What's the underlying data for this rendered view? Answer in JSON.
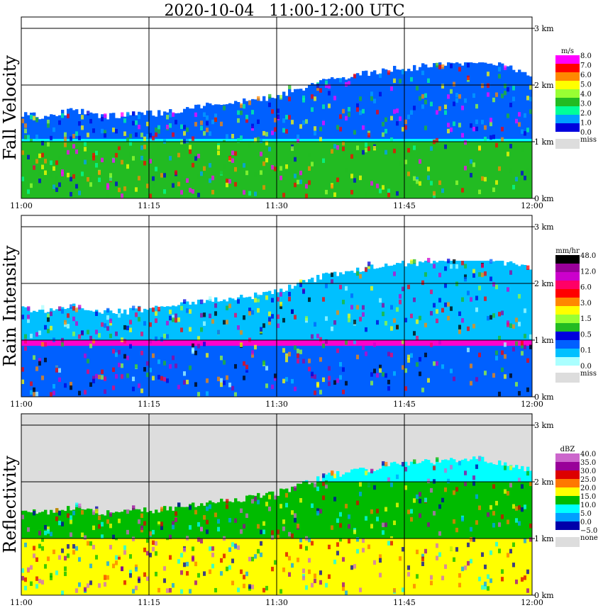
{
  "chart_data": {
    "type": "heatmap",
    "title": "2020-10-04   11:00-12:00 UTC",
    "x_tick_labels": [
      "11:00",
      "11:15",
      "11:30",
      "11:45",
      "12:00"
    ],
    "x_range_minutes": [
      0,
      60
    ],
    "y_tick_labels": [
      "0 km",
      "1 km",
      "2 km",
      "3 km"
    ],
    "y_range_km": [
      0,
      3.2
    ],
    "grid": true,
    "panels": [
      {
        "name": "fall-velocity",
        "label": "Fall Velocity",
        "unit": "m/s",
        "legend_labels": [
          "8.0",
          "7.0",
          "6.0",
          "5.0",
          "4.0",
          "3.0",
          "2.0",
          "1.0",
          "0.0"
        ],
        "legend_colors": [
          "#ff00ff",
          "#ff0000",
          "#ff8800",
          "#ffff00",
          "#99ff33",
          "#22bb22",
          "#00ff99",
          "#00a0ff",
          "#0000dd"
        ],
        "miss_label": "miss",
        "miss_color": "#dddddd",
        "background": "#ffffff",
        "echo_top_km": [
          1.5,
          1.45,
          1.5,
          1.55,
          1.5,
          1.45,
          1.45,
          1.5,
          1.5,
          1.55,
          1.6,
          1.65,
          1.65,
          1.7,
          1.75,
          1.8,
          1.9,
          2.0,
          2.1,
          2.15,
          2.2,
          2.25,
          2.3,
          2.3,
          2.35,
          2.35,
          2.4,
          2.4,
          2.35,
          2.3,
          2.2
        ],
        "dominant_layers": [
          {
            "from_km": 0.0,
            "to_km": 1.0,
            "color": "#22bb22"
          },
          {
            "from_km": 1.0,
            "to_km": 1.05,
            "color": "#00ffff"
          },
          {
            "from_km": 1.05,
            "to_km": 2.4,
            "color": "#0060ff"
          }
        ]
      },
      {
        "name": "rain-intensity",
        "label": "Rain Intensity",
        "unit": "mm/hr",
        "legend_labels": [
          "48.0",
          "12.0",
          "6.0",
          "3.0",
          "1.5",
          "0.5",
          "0.1",
          "0.0"
        ],
        "legend_colors": [
          "#000000",
          "#990099",
          "#cc00cc",
          "#ff0066",
          "#ff0000",
          "#ff8800",
          "#ffff00",
          "#99ff33",
          "#22bb22",
          "#0000dd",
          "#0060ff",
          "#00c0ff",
          "#aaffff"
        ],
        "miss_label": "miss",
        "miss_color": "#dddddd",
        "background": "#ffffff",
        "echo_top_km": [
          1.55,
          1.5,
          1.55,
          1.6,
          1.55,
          1.5,
          1.5,
          1.55,
          1.55,
          1.6,
          1.65,
          1.7,
          1.7,
          1.75,
          1.8,
          1.85,
          1.95,
          2.05,
          2.15,
          2.2,
          2.25,
          2.3,
          2.35,
          2.35,
          2.4,
          2.4,
          2.45,
          2.45,
          2.4,
          2.35,
          2.25
        ],
        "dominant_layers": [
          {
            "from_km": 0.0,
            "to_km": 0.9,
            "color": "#0060ff"
          },
          {
            "from_km": 0.9,
            "to_km": 1.0,
            "color": "#ff00cc"
          },
          {
            "from_km": 1.0,
            "to_km": 2.4,
            "color": "#00c0ff"
          }
        ]
      },
      {
        "name": "reflectivity",
        "label": "Reflectivity",
        "unit": "dBZ",
        "legend_labels": [
          "40.0",
          "35.0",
          "30.0",
          "25.0",
          "20.0",
          "15.0",
          "10.0",
          "5.0",
          "0.0",
          "−5.0"
        ],
        "legend_colors": [
          "#cc66cc",
          "#990099",
          "#dd0000",
          "#ff7700",
          "#ffff00",
          "#00bb00",
          "#00ffff",
          "#00a0ff",
          "#0000aa"
        ],
        "miss_label": "none",
        "miss_color": "#dddddd",
        "background": "#dddddd",
        "echo_top_km": [
          1.5,
          1.45,
          1.5,
          1.55,
          1.5,
          1.45,
          1.45,
          1.5,
          1.5,
          1.55,
          1.6,
          1.65,
          1.65,
          1.7,
          1.75,
          1.8,
          1.9,
          2.0,
          2.1,
          2.15,
          2.2,
          2.25,
          2.3,
          2.3,
          2.35,
          2.35,
          2.4,
          2.4,
          2.35,
          2.3,
          2.2
        ],
        "dominant_layers": [
          {
            "from_km": 0.0,
            "to_km": 1.0,
            "color": "#ffff00"
          },
          {
            "from_km": 1.0,
            "to_km": 2.0,
            "color": "#00bb00"
          },
          {
            "from_km": 2.0,
            "to_km": 2.5,
            "color": "#00ffff"
          }
        ]
      }
    ]
  }
}
